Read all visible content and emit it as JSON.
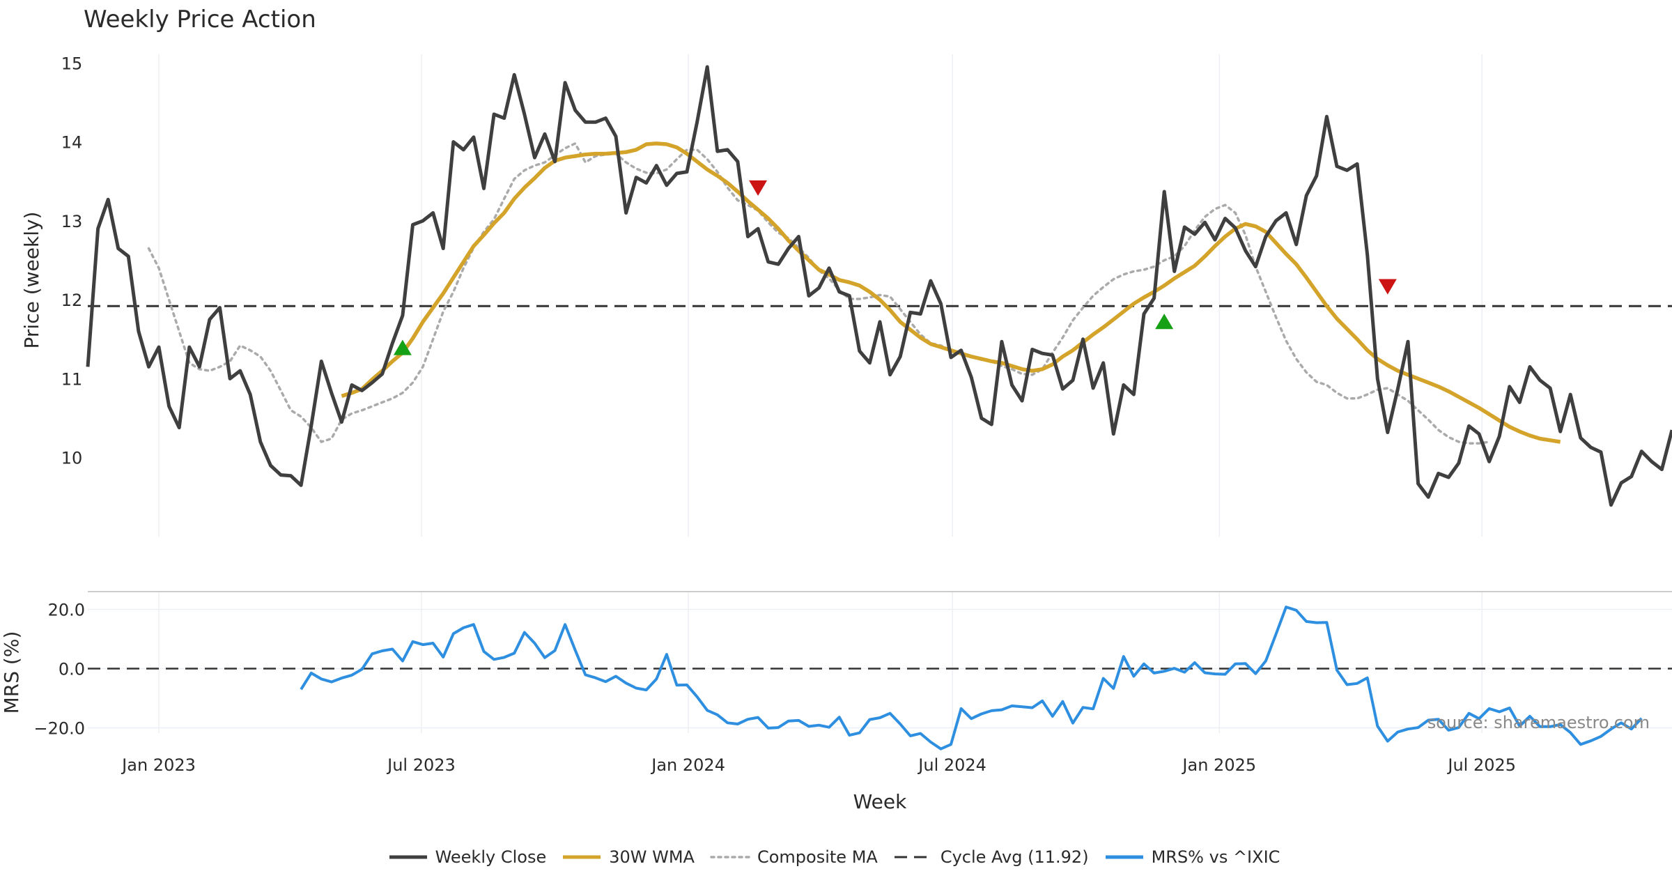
{
  "colors": {
    "close": "#3f3f3f",
    "wma": "#d4a32a",
    "composite": "#aaaaaa",
    "cycle": "#333333",
    "mrs": "#2e8fe0",
    "buy": "#16a016",
    "sell": "#cc1414",
    "grid": "#eceff3"
  },
  "chart_data": [
    {
      "type": "line",
      "title": "Weekly Price Action",
      "ylabel": "Price (weekly)",
      "xlabel": "Week",
      "ylim": [
        9.0,
        15.4
      ],
      "xlim": [
        "2022-11-13",
        "2025-11-09"
      ],
      "yticks": [
        "10",
        "11",
        "12",
        "13",
        "14",
        "15"
      ],
      "xticks": [
        "2023-01-01",
        "2023-07-01",
        "2024-01-01",
        "2024-07-01",
        "2025-01-01",
        "2025-07-01"
      ],
      "xtick_labels": [
        "Jan 2023",
        "Jul 2023",
        "Jan 2024",
        "Jul 2024",
        "Jan 2025",
        "Jul 2025"
      ],
      "grid": true,
      "series": [
        {
          "name": "Weekly Close",
          "start": "2022-11-13",
          "step_days": 7,
          "values": [
            11.15,
            12.9,
            13.27,
            12.65,
            12.55,
            11.6,
            11.15,
            11.4,
            10.65,
            10.38,
            11.4,
            11.15,
            11.75,
            11.9,
            11.0,
            11.1,
            10.8,
            10.2,
            9.9,
            9.78,
            9.77,
            9.65,
            10.4,
            11.22,
            10.82,
            10.45,
            10.92,
            10.85,
            10.95,
            11.06,
            11.45,
            11.8,
            12.95,
            13.0,
            13.1,
            12.65,
            14.0,
            13.9,
            14.06,
            13.41,
            14.35,
            14.3,
            14.85,
            14.35,
            13.8,
            14.1,
            13.75,
            14.75,
            14.4,
            14.25,
            14.25,
            14.3,
            14.07,
            13.1,
            13.55,
            13.48,
            13.7,
            13.45,
            13.6,
            13.62,
            14.25,
            14.95,
            13.88,
            13.9,
            13.75,
            12.8,
            12.9,
            12.48,
            12.45,
            12.65,
            12.8,
            12.05,
            12.15,
            12.4,
            12.1,
            12.05,
            11.35,
            11.2,
            11.72,
            11.05,
            11.28,
            11.84,
            11.82,
            12.24,
            11.95,
            11.27,
            11.36,
            11.02,
            10.5,
            10.42,
            11.47,
            10.92,
            10.72,
            11.37,
            11.32,
            11.3,
            10.87,
            10.98,
            11.5,
            10.88,
            11.2,
            10.3,
            10.92,
            10.8,
            11.82,
            12.02,
            13.37,
            12.36,
            12.92,
            12.83,
            12.98,
            12.76,
            13.03,
            12.91,
            12.62,
            12.42,
            12.8,
            13.0,
            13.1,
            12.7,
            13.32,
            13.57,
            14.32,
            13.69,
            13.64,
            13.72,
            12.57,
            11.0,
            10.32,
            10.87,
            11.47,
            9.67,
            9.5,
            9.8,
            9.75,
            9.93,
            10.4,
            10.3,
            9.95,
            10.27,
            10.9,
            10.7,
            11.15,
            10.98,
            10.88,
            10.33,
            10.8,
            10.25,
            10.13,
            10.07,
            9.4,
            9.68,
            9.76,
            10.08,
            9.95,
            9.85,
            10.35
          ]
        },
        {
          "name": "30W WMA",
          "start": "2023-05-07",
          "step_days": 7,
          "values": [
            10.78,
            10.82,
            10.87,
            10.99,
            11.1,
            11.22,
            11.33,
            11.51,
            11.72,
            11.9,
            12.08,
            12.28,
            12.48,
            12.68,
            12.82,
            12.97,
            13.1,
            13.28,
            13.42,
            13.54,
            13.67,
            13.76,
            13.8,
            13.82,
            13.84,
            13.85,
            13.85,
            13.86,
            13.87,
            13.9,
            13.97,
            13.98,
            13.97,
            13.93,
            13.85,
            13.75,
            13.65,
            13.57,
            13.48,
            13.37,
            13.25,
            13.14,
            13.03,
            12.9,
            12.75,
            12.62,
            12.5,
            12.38,
            12.32,
            12.25,
            12.22,
            12.18,
            12.1,
            12.0,
            11.87,
            11.72,
            11.62,
            11.52,
            11.44,
            11.4,
            11.36,
            11.32,
            11.28,
            11.25,
            11.22,
            11.2,
            11.16,
            11.12,
            11.1,
            11.12,
            11.18,
            11.28,
            11.36,
            11.46,
            11.56,
            11.65,
            11.75,
            11.85,
            11.95,
            12.03,
            12.1,
            12.18,
            12.27,
            12.35,
            12.43,
            12.55,
            12.68,
            12.8,
            12.9,
            12.96,
            12.93,
            12.86,
            12.72,
            12.58,
            12.45,
            12.28,
            12.1,
            11.92,
            11.76,
            11.63,
            11.5,
            11.36,
            11.25,
            11.17,
            11.1,
            11.05,
            11.0,
            10.95,
            10.9,
            10.84,
            10.77,
            10.7,
            10.63,
            10.55,
            10.47,
            10.39,
            10.33,
            10.28,
            10.24,
            10.22,
            10.2
          ]
        },
        {
          "name": "Composite MA",
          "start": "2022-12-25",
          "step_days": 7,
          "values": [
            12.65,
            12.4,
            12.0,
            11.6,
            11.2,
            11.12,
            11.1,
            11.15,
            11.22,
            11.42,
            11.36,
            11.28,
            11.1,
            10.85,
            10.6,
            10.52,
            10.38,
            10.2,
            10.24,
            10.48,
            10.56,
            10.6,
            10.65,
            10.7,
            10.75,
            10.82,
            10.95,
            11.15,
            11.5,
            11.85,
            12.1,
            12.4,
            12.66,
            12.86,
            13.02,
            13.28,
            13.53,
            13.64,
            13.7,
            13.74,
            13.83,
            13.92,
            13.98,
            13.74,
            13.82,
            13.84,
            13.85,
            13.74,
            13.66,
            13.61,
            13.6,
            13.65,
            13.78,
            13.9,
            13.9,
            13.78,
            13.62,
            13.42,
            13.26,
            13.2,
            13.13,
            12.98,
            12.85,
            12.78,
            12.66,
            12.53,
            12.37,
            12.27,
            12.12,
            12.01,
            12.01,
            12.03,
            12.06,
            12.04,
            11.88,
            11.72,
            11.56,
            11.45,
            11.42,
            11.36,
            11.32,
            11.28,
            11.24,
            11.22,
            11.16,
            11.12,
            11.06,
            11.05,
            11.12,
            11.33,
            11.52,
            11.74,
            11.9,
            12.05,
            12.16,
            12.26,
            12.32,
            12.36,
            12.38,
            12.42,
            12.5,
            12.55,
            12.68,
            12.88,
            13.05,
            13.15,
            13.2,
            13.1,
            12.82,
            12.42,
            12.1,
            11.78,
            11.48,
            11.25,
            11.08,
            10.96,
            10.92,
            10.82,
            10.75,
            10.75,
            10.8,
            10.86,
            10.88,
            10.8,
            10.72,
            10.6,
            10.48,
            10.35,
            10.26,
            10.2,
            10.18,
            10.18,
            10.2
          ]
        },
        {
          "name": "Cycle Avg (11.92)",
          "type": "horizontal_line",
          "y": 11.92,
          "style": "dashed"
        }
      ],
      "markers": [
        {
          "kind": "buy",
          "date": "2023-06-18",
          "y": 11.39
        },
        {
          "kind": "sell",
          "date": "2024-02-18",
          "y": 13.42
        },
        {
          "kind": "buy",
          "date": "2024-11-24",
          "y": 11.72
        },
        {
          "kind": "sell",
          "date": "2025-04-27",
          "y": 12.17
        }
      ],
      "annotations": [
        "source: sharemaestro.com"
      ]
    },
    {
      "type": "line",
      "ylabel": "MRS (%)",
      "ylim": [
        -26,
        26
      ],
      "yticks": [
        "20.0",
        "0.0",
        "−20.0"
      ],
      "ytick_values": [
        20,
        0,
        -20
      ],
      "grid": true,
      "series": [
        {
          "name": "MRS% vs ^IXIC",
          "start": "2023-04-09",
          "step_days": 7,
          "values": [
            -7,
            -1.5,
            -3.5,
            -4.5,
            -3.2,
            -2.2,
            -0.2,
            5,
            6,
            6.6,
            2.6,
            9.1,
            8.1,
            8.6,
            3.9,
            11.8,
            13.8,
            14.9,
            5.8,
            3.1,
            3.8,
            5.2,
            12.2,
            8.6,
            3.7,
            6.1,
            14.9,
            6.2,
            -2.1,
            -3.1,
            -4.4,
            -2.6,
            -4.9,
            -6.6,
            -7.2,
            -3.5,
            4.8,
            -5.6,
            -5.5,
            -9.5,
            -14.1,
            -15.6,
            -18.3,
            -18.7,
            -17.1,
            -16.5,
            -20.1,
            -19.9,
            -17.7,
            -17.5,
            -19.5,
            -19.1,
            -19.8,
            -16.4,
            -22.5,
            -21.7,
            -17.2,
            -16.6,
            -15.1,
            -18.7,
            -22.7,
            -21.9,
            -24.8,
            -27.1,
            -25.6,
            -13.5,
            -16.9,
            -15.3,
            -14.2,
            -13.9,
            -12.6,
            -12.9,
            -13.2,
            -10.9,
            -16.1,
            -11.1,
            -18.4,
            -13.1,
            -13.6,
            -3.3,
            -6.7,
            4.1,
            -2.6,
            1.6,
            -1.5,
            -0.9,
            0.1,
            -1.2,
            2,
            -1.4,
            -1.8,
            -1.9,
            1.6,
            1.7,
            -1.7,
            2.6,
            11.6,
            20.8,
            19.7,
            15.9,
            15.5,
            15.6,
            -0.5,
            -5.4,
            -5,
            -3.1,
            -19.4,
            -24.5,
            -21.4,
            -20.4,
            -19.9,
            -17.4,
            -17.1,
            -20.8,
            -19.9,
            -15.1,
            -16.9,
            -13.5,
            -14.6,
            -13.3,
            -19.4,
            -16.1,
            -19.6,
            -19.6,
            -18.9,
            -21.6,
            -25.6,
            -24.4,
            -22.9,
            -20.4,
            -18.3,
            -20.4,
            -16.8
          ]
        },
        {
          "type": "horizontal_line",
          "y": 0,
          "style": "dashed"
        }
      ]
    }
  ],
  "legend": {
    "placement": "bottom-center",
    "items": [
      {
        "label": "Weekly Close",
        "style": "solid",
        "color_key": "close"
      },
      {
        "label": "30W WMA",
        "style": "solid",
        "color_key": "wma"
      },
      {
        "label": "Composite MA",
        "style": "dotted",
        "color_key": "composite"
      },
      {
        "label": "Cycle Avg (11.92)",
        "style": "dashed",
        "color_key": "cycle"
      },
      {
        "label": "MRS% vs ^IXIC",
        "style": "solid",
        "color_key": "mrs"
      }
    ]
  }
}
